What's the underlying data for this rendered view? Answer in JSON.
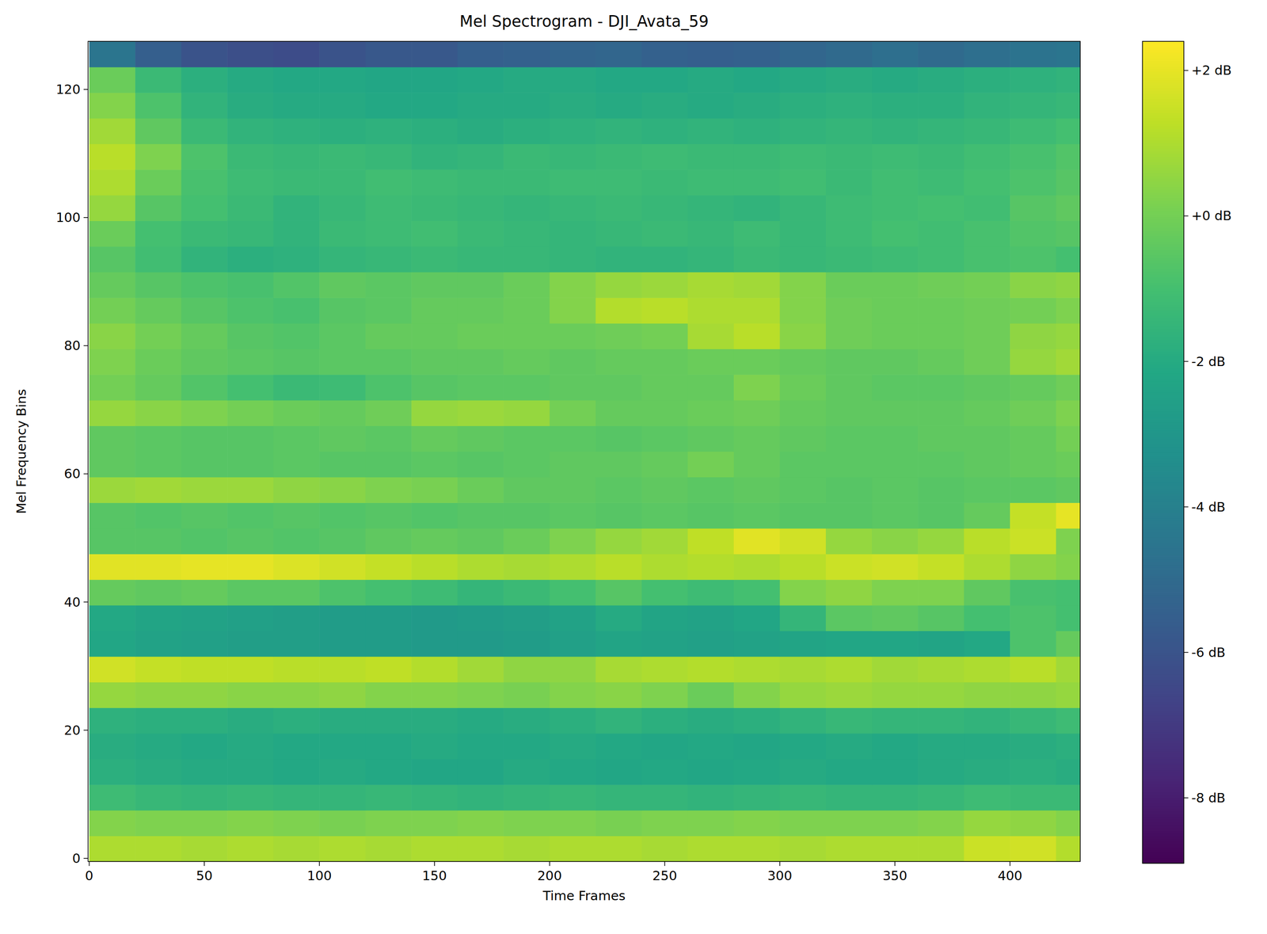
{
  "chart_data": {
    "type": "heatmap",
    "title": "Mel Spectrogram - DJI_Avata_59",
    "x_label": "Time Frames",
    "y_label": "Mel Frequency Bins",
    "xlim": [
      -0.5,
      430.5
    ],
    "ylim": [
      -0.5,
      127.5
    ],
    "xticks": [
      0,
      50,
      100,
      150,
      200,
      250,
      300,
      350,
      400
    ],
    "yticks": [
      0,
      20,
      40,
      60,
      80,
      100,
      120
    ],
    "x": [
      10,
      30,
      50,
      70,
      90,
      110,
      130,
      150,
      170,
      190,
      210,
      230,
      250,
      270,
      290,
      310,
      330,
      350,
      370,
      390,
      410,
      430
    ],
    "y": [
      1.5,
      5.5,
      9.5,
      13.5,
      17.5,
      21.5,
      25.5,
      29.5,
      33.5,
      37.5,
      41.5,
      45.5,
      49.5,
      53.5,
      57.5,
      61.5,
      65.5,
      69.5,
      73.5,
      77.5,
      81.5,
      85.5,
      89.5,
      93.5,
      97.5,
      101.5,
      105.5,
      109.5,
      113.5,
      117.5,
      121.5,
      125.5
    ],
    "values": [
      [
        1.0,
        1.0,
        0.9,
        1.0,
        0.9,
        1.0,
        0.9,
        1.0,
        1.0,
        0.9,
        1.0,
        1.0,
        0.9,
        1.0,
        1.0,
        0.9,
        1.0,
        1.0,
        1.0,
        1.5,
        1.6,
        1.1
      ],
      [
        0.3,
        0.2,
        0.2,
        0.3,
        0.2,
        0.1,
        0.2,
        0.2,
        0.3,
        0.2,
        0.2,
        0.1,
        0.2,
        0.2,
        0.3,
        0.2,
        0.2,
        0.2,
        0.3,
        0.6,
        0.5,
        0.3
      ],
      [
        -1.2,
        -1.4,
        -1.5,
        -1.4,
        -1.5,
        -1.5,
        -1.4,
        -1.5,
        -1.6,
        -1.5,
        -1.4,
        -1.5,
        -1.5,
        -1.6,
        -1.5,
        -1.4,
        -1.5,
        -1.5,
        -1.4,
        -1.2,
        -1.3,
        -1.3
      ],
      [
        -1.8,
        -1.9,
        -2.0,
        -2.0,
        -2.1,
        -2.0,
        -2.1,
        -2.2,
        -2.2,
        -2.0,
        -2.1,
        -2.2,
        -2.1,
        -2.2,
        -2.1,
        -2.0,
        -2.1,
        -2.1,
        -2.0,
        -1.9,
        -1.8,
        -1.9
      ],
      [
        -1.9,
        -2.0,
        -2.1,
        -2.0,
        -2.1,
        -2.1,
        -2.1,
        -2.0,
        -2.1,
        -2.1,
        -2.0,
        -2.1,
        -2.2,
        -2.1,
        -2.2,
        -2.1,
        -2.0,
        -2.1,
        -2.0,
        -2.0,
        -1.9,
        -1.8
      ],
      [
        -1.7,
        -1.8,
        -1.8,
        -1.9,
        -1.8,
        -1.9,
        -1.9,
        -1.9,
        -2.0,
        -1.9,
        -1.8,
        -1.6,
        -1.8,
        -1.9,
        -1.8,
        -1.6,
        -1.4,
        -1.5,
        -1.5,
        -1.6,
        -1.4,
        -1.2
      ],
      [
        0.6,
        0.5,
        0.5,
        0.4,
        0.4,
        0.5,
        0.3,
        0.3,
        0.2,
        0.1,
        0.3,
        0.4,
        0.2,
        -0.2,
        0.3,
        0.6,
        0.7,
        0.6,
        0.6,
        0.5,
        0.5,
        0.6
      ],
      [
        1.6,
        1.4,
        1.3,
        1.3,
        1.2,
        1.2,
        1.3,
        1.1,
        0.8,
        0.5,
        0.5,
        0.9,
        1.0,
        1.1,
        1.0,
        0.9,
        1.0,
        0.8,
        0.9,
        1.0,
        1.2,
        0.8
      ],
      [
        -2.2,
        -2.4,
        -2.5,
        -2.6,
        -2.6,
        -2.7,
        -2.7,
        -2.8,
        -2.8,
        -2.7,
        -2.5,
        -2.3,
        -2.4,
        -2.5,
        -2.4,
        -2.3,
        -2.2,
        -2.2,
        -2.3,
        -2.1,
        -0.8,
        -0.3
      ],
      [
        -2.1,
        -2.3,
        -2.4,
        -2.5,
        -2.6,
        -2.7,
        -2.7,
        -2.8,
        -2.7,
        -2.6,
        -2.4,
        -2.0,
        -2.3,
        -2.4,
        -2.2,
        -1.5,
        -0.5,
        -0.4,
        -0.6,
        -1.0,
        -0.8,
        -1.0
      ],
      [
        -0.3,
        -0.4,
        -0.3,
        -0.5,
        -0.5,
        -0.8,
        -1.0,
        -1.2,
        -1.5,
        -1.3,
        -1.0,
        -0.6,
        -1.0,
        -1.2,
        -1.0,
        0.3,
        0.5,
        0.2,
        0.2,
        -0.4,
        -0.9,
        -1.0
      ],
      [
        1.9,
        1.9,
        2.0,
        2.0,
        1.8,
        1.6,
        1.4,
        1.2,
        1.0,
        0.9,
        1.0,
        1.2,
        1.0,
        1.1,
        1.0,
        1.2,
        1.5,
        1.6,
        1.4,
        1.0,
        0.5,
        0.3
      ],
      [
        -0.6,
        -0.6,
        -0.7,
        -0.6,
        -0.7,
        -0.6,
        -0.4,
        -0.3,
        -0.4,
        -0.2,
        0.2,
        0.6,
        0.8,
        1.3,
        1.9,
        1.6,
        0.6,
        0.4,
        0.6,
        1.2,
        1.5,
        0.2
      ],
      [
        -0.6,
        -0.7,
        -0.6,
        -0.7,
        -0.6,
        -0.7,
        -0.6,
        -0.7,
        -0.6,
        -0.6,
        -0.5,
        -0.6,
        -0.5,
        -0.6,
        -0.5,
        -0.6,
        -0.6,
        -0.5,
        -0.6,
        -0.3,
        1.4,
        2.0
      ],
      [
        0.7,
        0.8,
        0.7,
        0.7,
        0.5,
        0.4,
        0.2,
        0.1,
        -0.2,
        -0.4,
        -0.4,
        -0.5,
        -0.4,
        -0.5,
        -0.4,
        -0.5,
        -0.6,
        -0.5,
        -0.6,
        -0.5,
        -0.5,
        -0.4
      ],
      [
        -0.4,
        -0.5,
        -0.6,
        -0.6,
        -0.5,
        -0.6,
        -0.6,
        -0.5,
        -0.6,
        -0.5,
        -0.4,
        -0.4,
        -0.3,
        0.0,
        -0.3,
        -0.5,
        -0.5,
        -0.5,
        -0.5,
        -0.4,
        -0.3,
        -0.2
      ],
      [
        -0.4,
        -0.5,
        -0.6,
        -0.6,
        -0.5,
        -0.4,
        -0.5,
        -0.3,
        -0.4,
        -0.5,
        -0.5,
        -0.6,
        -0.5,
        -0.4,
        -0.3,
        -0.4,
        -0.5,
        -0.5,
        -0.4,
        -0.4,
        -0.3,
        0.0
      ],
      [
        0.6,
        0.4,
        0.2,
        0.0,
        -0.2,
        -0.3,
        -0.1,
        0.6,
        0.7,
        0.6,
        0.0,
        -0.3,
        -0.3,
        -0.2,
        -0.1,
        -0.3,
        -0.4,
        -0.4,
        -0.4,
        -0.3,
        -0.1,
        0.2
      ],
      [
        0.0,
        -0.3,
        -0.7,
        -1.0,
        -1.3,
        -1.2,
        -0.8,
        -0.6,
        -0.5,
        -0.5,
        -0.4,
        -0.4,
        -0.3,
        -0.3,
        0.2,
        -0.2,
        -0.4,
        -0.5,
        -0.5,
        -0.4,
        -0.3,
        -0.1
      ],
      [
        0.2,
        -0.2,
        -0.4,
        -0.5,
        -0.6,
        -0.5,
        -0.5,
        -0.4,
        -0.4,
        -0.3,
        -0.4,
        -0.3,
        -0.3,
        -0.2,
        -0.2,
        -0.3,
        -0.4,
        -0.4,
        -0.3,
        -0.1,
        0.6,
        0.8
      ],
      [
        0.4,
        0.0,
        -0.3,
        -0.6,
        -0.7,
        -0.5,
        -0.3,
        -0.3,
        -0.2,
        -0.2,
        -0.2,
        -0.1,
        0.0,
        0.9,
        1.2,
        0.4,
        -0.1,
        -0.2,
        -0.2,
        -0.1,
        0.5,
        0.6
      ],
      [
        0.0,
        -0.3,
        -0.6,
        -0.8,
        -0.9,
        -0.6,
        -0.5,
        -0.3,
        -0.3,
        -0.2,
        0.3,
        1.1,
        1.2,
        1.0,
        1.0,
        0.3,
        -0.1,
        -0.2,
        -0.2,
        -0.1,
        0.0,
        0.2
      ],
      [
        -0.3,
        -0.6,
        -0.8,
        -0.9,
        -0.7,
        -0.4,
        -0.5,
        -0.4,
        -0.4,
        -0.2,
        0.3,
        0.6,
        0.7,
        0.9,
        0.8,
        0.3,
        -0.2,
        -0.2,
        -0.1,
        0.0,
        0.4,
        0.5
      ],
      [
        -0.6,
        -1.1,
        -1.6,
        -1.8,
        -1.7,
        -1.5,
        -1.4,
        -1.3,
        -1.4,
        -1.4,
        -1.5,
        -1.6,
        -1.6,
        -1.5,
        -1.3,
        -1.4,
        -1.3,
        -1.2,
        -1.1,
        -0.9,
        -0.8,
        -1.0
      ],
      [
        -0.2,
        -1.0,
        -1.3,
        -1.4,
        -1.6,
        -1.3,
        -1.2,
        -1.1,
        -1.3,
        -1.4,
        -1.5,
        -1.4,
        -1.3,
        -1.4,
        -1.2,
        -1.4,
        -1.2,
        -1.0,
        -1.1,
        -0.9,
        -0.7,
        -0.6
      ],
      [
        0.6,
        -0.6,
        -1.0,
        -1.3,
        -1.6,
        -1.4,
        -1.2,
        -1.3,
        -1.4,
        -1.5,
        -1.4,
        -1.3,
        -1.4,
        -1.5,
        -1.6,
        -1.4,
        -1.2,
        -1.1,
        -1.0,
        -1.1,
        -0.6,
        -0.4
      ],
      [
        1.0,
        -0.2,
        -0.9,
        -1.2,
        -1.3,
        -1.3,
        -1.1,
        -1.2,
        -1.3,
        -1.3,
        -1.2,
        -1.2,
        -1.3,
        -1.2,
        -1.2,
        -1.1,
        -1.3,
        -1.1,
        -1.2,
        -1.0,
        -0.8,
        -0.6
      ],
      [
        1.2,
        0.2,
        -0.8,
        -1.3,
        -1.4,
        -1.3,
        -1.4,
        -1.6,
        -1.5,
        -1.3,
        -1.4,
        -1.3,
        -1.2,
        -1.3,
        -1.3,
        -1.2,
        -1.3,
        -1.2,
        -1.3,
        -1.1,
        -0.9,
        -0.7
      ],
      [
        0.8,
        -0.4,
        -1.3,
        -1.6,
        -1.7,
        -1.8,
        -1.7,
        -1.8,
        -1.9,
        -1.8,
        -1.7,
        -1.6,
        -1.7,
        -1.6,
        -1.7,
        -1.6,
        -1.5,
        -1.6,
        -1.5,
        -1.4,
        -1.2,
        -1.0
      ],
      [
        0.3,
        -0.8,
        -1.6,
        -1.9,
        -2.0,
        -2.0,
        -2.1,
        -2.1,
        -2.0,
        -2.0,
        -1.9,
        -2.0,
        -1.9,
        -2.0,
        -1.9,
        -1.8,
        -1.7,
        -1.8,
        -1.8,
        -1.6,
        -1.5,
        -1.4
      ],
      [
        -0.2,
        -1.3,
        -1.8,
        -2.0,
        -2.1,
        -2.1,
        -2.2,
        -2.2,
        -2.1,
        -2.0,
        -2.0,
        -2.1,
        -2.1,
        -2.0,
        -2.1,
        -2.0,
        -1.9,
        -2.0,
        -1.9,
        -1.8,
        -1.7,
        -1.6
      ],
      [
        -4.5,
        -5.5,
        -6.0,
        -6.2,
        -6.3,
        -6.0,
        -5.8,
        -5.8,
        -5.5,
        -5.4,
        -5.3,
        -5.2,
        -5.4,
        -5.5,
        -5.4,
        -5.2,
        -5.0,
        -4.8,
        -5.0,
        -4.8,
        -4.6,
        -4.5
      ]
    ],
    "colorbar_range": [
      -8.9,
      2.4
    ],
    "colorbar_ticks": [
      {
        "value": -8,
        "label": "-8 dB"
      },
      {
        "value": -6,
        "label": "-6 dB"
      },
      {
        "value": -4,
        "label": "-4 dB"
      },
      {
        "value": -2,
        "label": "-2 dB"
      },
      {
        "value": 0,
        "label": "+0 dB"
      },
      {
        "value": 2,
        "label": "+2 dB"
      }
    ]
  }
}
